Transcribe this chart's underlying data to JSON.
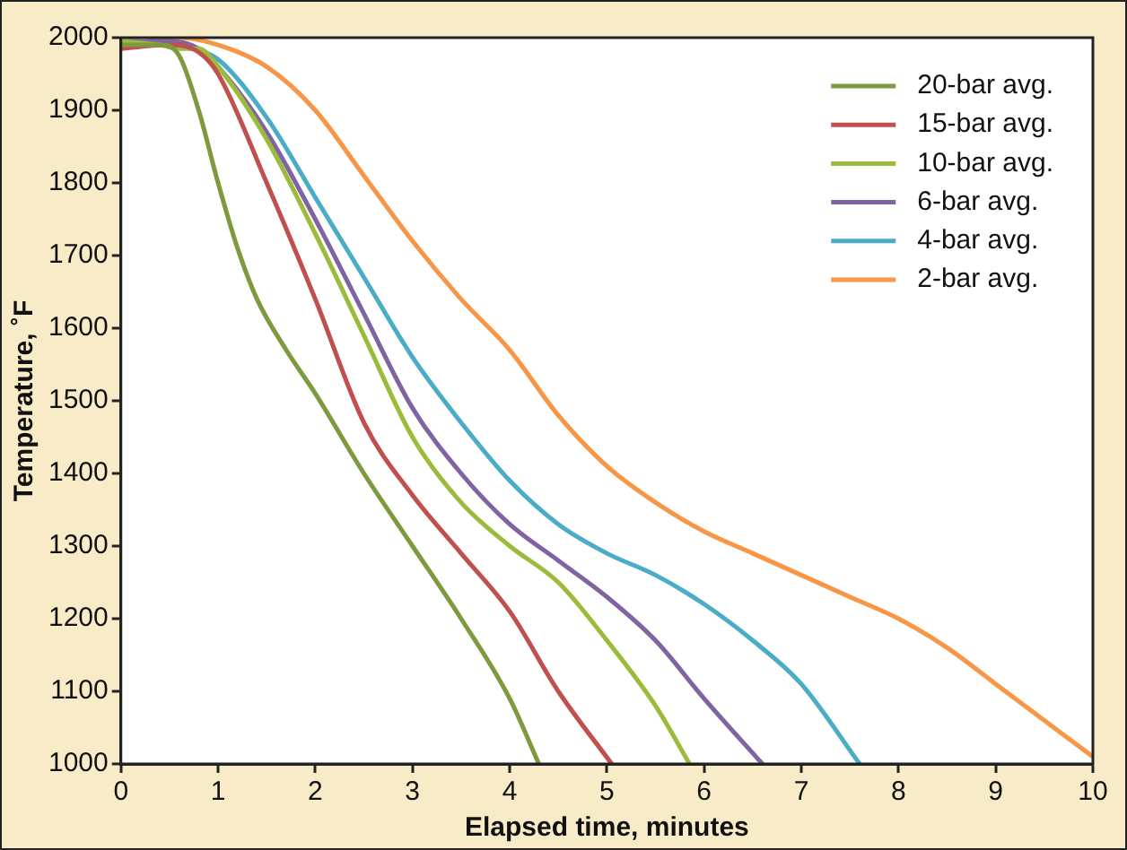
{
  "chart_data": {
    "type": "line",
    "xlabel": "Elapsed time, minutes",
    "ylabel": "Temperature, ˚F",
    "xlim": [
      0,
      10
    ],
    "xticks": [
      0,
      1,
      2,
      3,
      4,
      5,
      6,
      7,
      8,
      9,
      10
    ],
    "ylim": [
      1000,
      2000
    ],
    "yticks": [
      1000,
      1100,
      1200,
      1300,
      1400,
      1500,
      1600,
      1700,
      1800,
      1900,
      2000
    ],
    "grid": false,
    "legend": "top right",
    "marker": "none",
    "line_style": "solid",
    "series": [
      {
        "name": "20-bar avg.",
        "color": "#7d9b3e",
        "x": [
          0,
          0.4,
          0.6,
          0.8,
          1,
          1.2,
          1.4,
          1.7,
          2,
          2.5,
          3,
          3.5,
          4,
          4.3
        ],
        "values": [
          1990,
          1990,
          1975,
          1900,
          1800,
          1710,
          1640,
          1570,
          1510,
          1400,
          1300,
          1200,
          1090,
          1000
        ]
      },
      {
        "name": "15-bar avg.",
        "color": "#c0504d",
        "x": [
          0,
          0.5,
          0.8,
          1,
          1.5,
          2,
          2.5,
          3,
          3.5,
          4,
          4.5,
          5.05
        ],
        "values": [
          1985,
          1990,
          1980,
          1950,
          1800,
          1640,
          1470,
          1370,
          1290,
          1210,
          1100,
          1000
        ]
      },
      {
        "name": "10-bar avg.",
        "color": "#9bbb3b",
        "x": [
          0,
          0.4,
          0.6,
          0.8,
          1,
          1.5,
          2,
          2.5,
          3,
          3.5,
          4,
          4.5,
          5,
          5.5,
          5.85
        ],
        "values": [
          1995,
          1990,
          1985,
          1985,
          1960,
          1860,
          1730,
          1590,
          1450,
          1360,
          1300,
          1250,
          1170,
          1080,
          1000
        ]
      },
      {
        "name": "6-bar avg.",
        "color": "#8064a2",
        "x": [
          0,
          0.5,
          0.8,
          1,
          1.5,
          2,
          2.5,
          3,
          3.5,
          4,
          4.5,
          5,
          5.5,
          6,
          6.6
        ],
        "values": [
          1995,
          1995,
          1985,
          1960,
          1870,
          1750,
          1620,
          1490,
          1400,
          1330,
          1280,
          1230,
          1170,
          1090,
          1000
        ]
      },
      {
        "name": "4-bar avg.",
        "color": "#4bacc6",
        "x": [
          0.6,
          1,
          1.5,
          2,
          2.5,
          3,
          3.5,
          4,
          4.5,
          5,
          5.5,
          6,
          6.5,
          7,
          7.6
        ],
        "values": [
          1990,
          1970,
          1890,
          1780,
          1670,
          1560,
          1470,
          1390,
          1330,
          1290,
          1260,
          1220,
          1170,
          1110,
          1000
        ]
      },
      {
        "name": "2-bar avg.",
        "color": "#f79646",
        "x": [
          0.3,
          0.6,
          1,
          1.5,
          2,
          2.5,
          3,
          3.5,
          4,
          4.5,
          5,
          5.5,
          6,
          6.5,
          7,
          7.5,
          8,
          8.5,
          9,
          9.5,
          10
        ],
        "values": [
          2000,
          2000,
          1990,
          1960,
          1900,
          1810,
          1720,
          1640,
          1570,
          1480,
          1410,
          1360,
          1320,
          1290,
          1260,
          1230,
          1200,
          1160,
          1110,
          1060,
          1010
        ]
      }
    ]
  }
}
